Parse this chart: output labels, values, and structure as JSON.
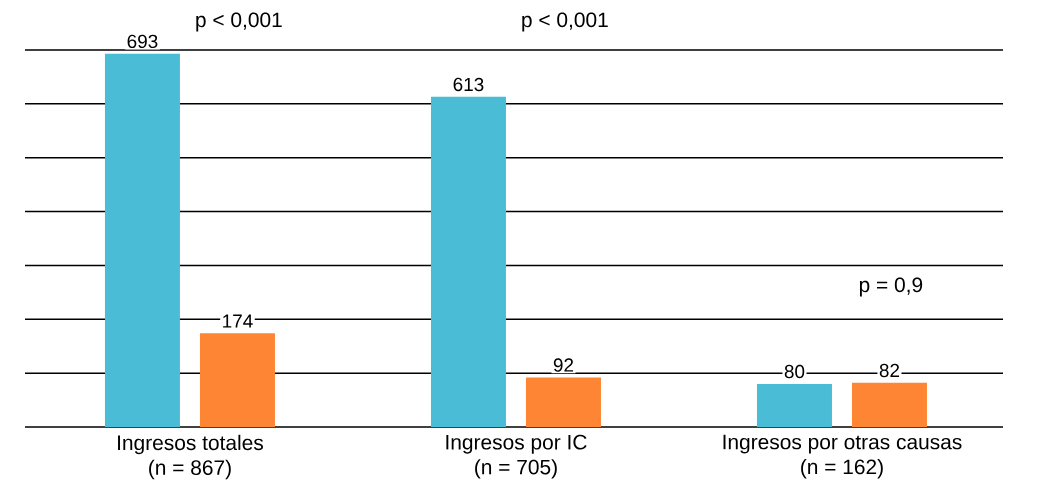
{
  "chart_data": {
    "type": "bar",
    "categories": [
      "Ingresos totales\n(n = 867)",
      "Ingresos por IC\n(n = 705)",
      "Ingresos por otras causas\n(n = 162)"
    ],
    "series": [
      {
        "color": "#4bbcd6",
        "values": [
          693,
          613,
          80
        ]
      },
      {
        "color": "#fd8533",
        "values": [
          174,
          92,
          82
        ]
      }
    ],
    "ylim": [
      0,
      700
    ],
    "yticks": [
      {
        "value": 100,
        "label": null
      },
      {
        "value": 200,
        "label": null
      },
      {
        "value": 300,
        "label": null
      },
      {
        "value": 400,
        "label": null
      },
      {
        "value": 500,
        "label": null
      },
      {
        "value": 600,
        "label": null
      },
      {
        "value": 700,
        "label": null
      }
    ],
    "grid": "y",
    "tick_labels": "x",
    "data_labels": true,
    "annotations": [
      "p < 0,001",
      "p < 0,001",
      "p = 0,9"
    ]
  }
}
